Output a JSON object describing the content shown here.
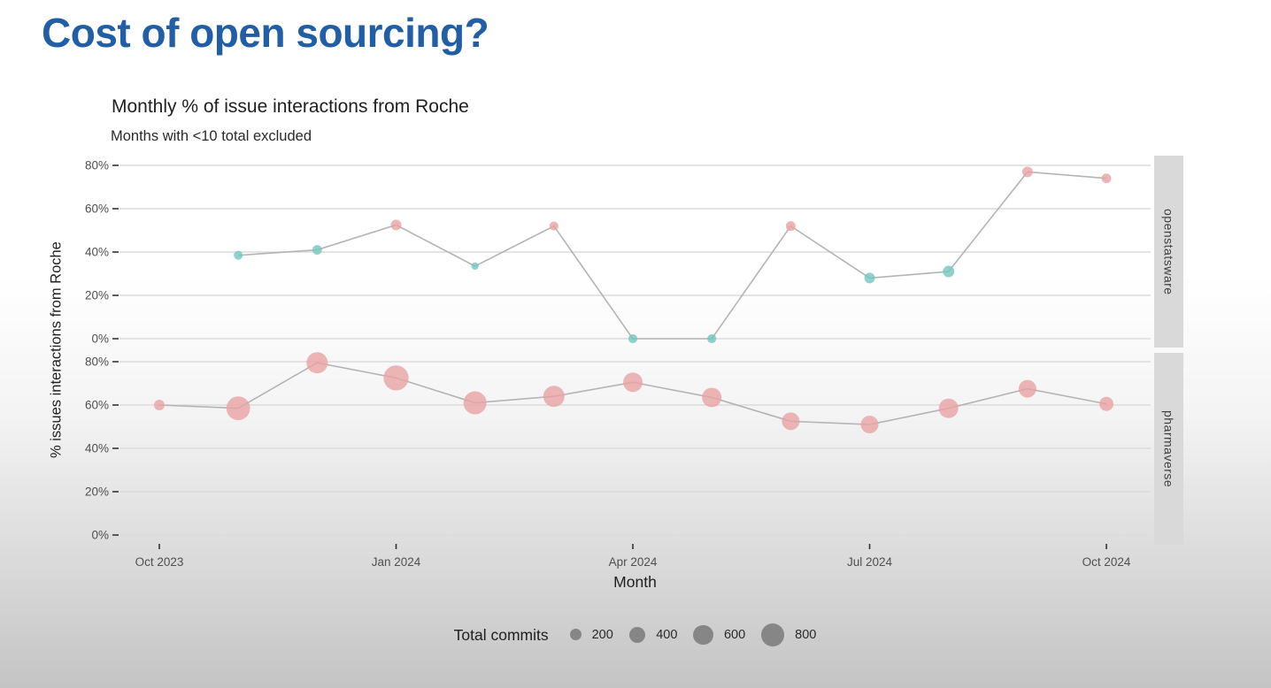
{
  "slide": {
    "title": "Cost of open sourcing?",
    "title_color": "#215EA6"
  },
  "chart_data": {
    "type": "scatter",
    "title": "Monthly % of issue interactions from Roche",
    "subtitle": "Months with <10 total excluded",
    "xlabel": "Month",
    "ylabel": "% issues interactions from Roche",
    "grid": "horizontal-only",
    "legend_position": "bottom",
    "x_categories": [
      "Oct 2023",
      "Nov 2023",
      "Dec 2023",
      "Jan 2024",
      "Feb 2024",
      "Mar 2024",
      "Apr 2024",
      "May 2024",
      "Jun 2024",
      "Jul 2024",
      "Aug 2024",
      "Sep 2024",
      "Oct 2024"
    ],
    "x_tick_labels": [
      "Oct 2023",
      "Jan 2024",
      "Apr 2024",
      "Jul 2024",
      "Oct 2024"
    ],
    "x_tick_indices": [
      0,
      3,
      6,
      9,
      12
    ],
    "y_ticks": [
      0,
      20,
      40,
      60,
      80
    ],
    "y_tick_labels": [
      "0%",
      "20%",
      "40%",
      "60%",
      "80%"
    ],
    "ylim": [
      0,
      87
    ],
    "colors": {
      "above_50_pct": "#E9A3A3",
      "below_50_pct": "#73C6BE",
      "line": "#b4b4b4",
      "grid": "#dbdbdb",
      "tick_text": "#4f4f4f",
      "strip_bg": "#d9d9d9"
    },
    "facets": [
      {
        "label": "openstatsware",
        "points": [
          {
            "month": "Nov 2023",
            "x": 1,
            "pct": 38.5,
            "commits": 120,
            "color": "#73C6BE"
          },
          {
            "month": "Dec 2023",
            "x": 2,
            "pct": 41,
            "commits": 140,
            "color": "#73C6BE"
          },
          {
            "month": "Jan 2024",
            "x": 3,
            "pct": 52.5,
            "commits": 170,
            "color": "#E9A3A3"
          },
          {
            "month": "Feb 2024",
            "x": 4,
            "pct": 33.5,
            "commits": 80,
            "color": "#73C6BE"
          },
          {
            "month": "Mar 2024",
            "x": 5,
            "pct": 52,
            "commits": 120,
            "color": "#E9A3A3"
          },
          {
            "month": "Apr 2024",
            "x": 6,
            "pct": 0,
            "commits": 120,
            "color": "#73C6BE"
          },
          {
            "month": "May 2024",
            "x": 7,
            "pct": 0,
            "commits": 120,
            "color": "#73C6BE"
          },
          {
            "month": "Jun 2024",
            "x": 8,
            "pct": 52,
            "commits": 140,
            "color": "#E9A3A3"
          },
          {
            "month": "Jul 2024",
            "x": 9,
            "pct": 28,
            "commits": 170,
            "color": "#73C6BE"
          },
          {
            "month": "Aug 2024",
            "x": 10,
            "pct": 31,
            "commits": 200,
            "color": "#73C6BE"
          },
          {
            "month": "Sep 2024",
            "x": 11,
            "pct": 77,
            "commits": 170,
            "color": "#E9A3A3"
          },
          {
            "month": "Oct 2024",
            "x": 12,
            "pct": 74,
            "commits": 140,
            "color": "#E9A3A3"
          }
        ]
      },
      {
        "label": "pharmaverse",
        "points": [
          {
            "month": "Oct 2023",
            "x": 0,
            "pct": 60,
            "commits": 170,
            "color": "#E9A3A3"
          },
          {
            "month": "Nov 2023",
            "x": 1,
            "pct": 58.5,
            "commits": 850,
            "color": "#E9A3A3"
          },
          {
            "month": "Dec 2023",
            "x": 2,
            "pct": 79.5,
            "commits": 680,
            "color": "#E9A3A3"
          },
          {
            "month": "Jan 2024",
            "x": 3,
            "pct": 72.5,
            "commits": 950,
            "color": "#E9A3A3"
          },
          {
            "month": "Feb 2024",
            "x": 4,
            "pct": 61,
            "commits": 800,
            "color": "#E9A3A3"
          },
          {
            "month": "Mar 2024",
            "x": 5,
            "pct": 64,
            "commits": 680,
            "color": "#E9A3A3"
          },
          {
            "month": "Apr 2024",
            "x": 6,
            "pct": 70.5,
            "commits": 570,
            "color": "#E9A3A3"
          },
          {
            "month": "May 2024",
            "x": 7,
            "pct": 63.5,
            "commits": 570,
            "color": "#E9A3A3"
          },
          {
            "month": "Jun 2024",
            "x": 8,
            "pct": 52.5,
            "commits": 470,
            "color": "#E9A3A3"
          },
          {
            "month": "Jul 2024",
            "x": 9,
            "pct": 51,
            "commits": 470,
            "color": "#E9A3A3"
          },
          {
            "month": "Aug 2024",
            "x": 10,
            "pct": 58.5,
            "commits": 570,
            "color": "#E9A3A3"
          },
          {
            "month": "Sep 2024",
            "x": 11,
            "pct": 67.5,
            "commits": 470,
            "color": "#E9A3A3"
          },
          {
            "month": "Oct 2024",
            "x": 12,
            "pct": 60.5,
            "commits": 300,
            "color": "#E9A3A3"
          }
        ]
      }
    ],
    "legend": {
      "title": "Total commits",
      "sizes": [
        200,
        400,
        600,
        800
      ],
      "circle_color": "#868686"
    }
  }
}
